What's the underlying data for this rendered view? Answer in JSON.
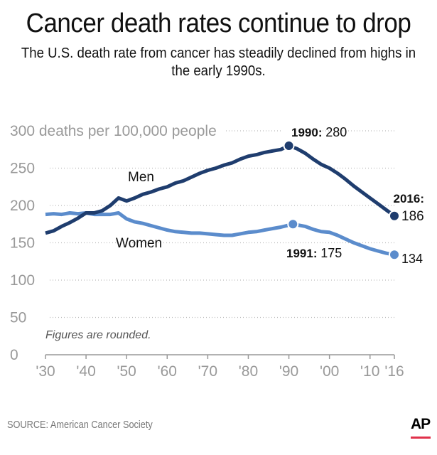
{
  "title": "Cancer death rates continue to drop",
  "subtitle_lines": [
    "The U.S. death rate from cancer has steadily declined from highs in",
    "the early 1990s."
  ],
  "source": "SOURCE: American Cancer Society",
  "logo": "AP",
  "colors": {
    "men": "#1f3d6e",
    "women": "#5b8ccc",
    "axis": "#999999",
    "ap_bar": "#e0314b"
  },
  "chart_data": {
    "type": "line",
    "ylabel": "deaths per 100,000 people",
    "ylim": [
      0,
      300
    ],
    "yticks": [
      0,
      50,
      100,
      150,
      200,
      250,
      300
    ],
    "ytick_labels": [
      "0",
      "50",
      "100",
      "150",
      "200",
      "250",
      "300"
    ],
    "xlim": [
      1930,
      2016
    ],
    "xticks": [
      1930,
      1940,
      1950,
      1960,
      1970,
      1980,
      1990,
      2000,
      2010,
      2016
    ],
    "xtick_labels": [
      "'30",
      "'40",
      "'50",
      "'60",
      "'70",
      "'80",
      "'90",
      "'00",
      "'10",
      "'16"
    ],
    "grid": true,
    "note": "Figures are rounded.",
    "series": [
      {
        "name": "Men",
        "x": [
          1930,
          1932,
          1934,
          1936,
          1938,
          1940,
          1942,
          1944,
          1946,
          1948,
          1950,
          1952,
          1954,
          1956,
          1958,
          1960,
          1962,
          1964,
          1966,
          1968,
          1970,
          1972,
          1974,
          1976,
          1978,
          1980,
          1982,
          1984,
          1986,
          1988,
          1990,
          1992,
          1994,
          1996,
          1998,
          2000,
          2002,
          2004,
          2006,
          2008,
          2010,
          2012,
          2014,
          2016
        ],
        "y": [
          163,
          166,
          172,
          177,
          183,
          190,
          190,
          193,
          200,
          210,
          206,
          210,
          215,
          218,
          222,
          225,
          230,
          233,
          238,
          243,
          247,
          250,
          254,
          257,
          262,
          266,
          268,
          271,
          273,
          275,
          280,
          276,
          270,
          262,
          255,
          250,
          243,
          235,
          226,
          218,
          210,
          202,
          194,
          186
        ]
      },
      {
        "name": "Women",
        "x": [
          1930,
          1932,
          1934,
          1936,
          1938,
          1940,
          1942,
          1944,
          1946,
          1948,
          1950,
          1952,
          1954,
          1956,
          1958,
          1960,
          1962,
          1964,
          1966,
          1968,
          1970,
          1972,
          1974,
          1976,
          1978,
          1980,
          1982,
          1984,
          1986,
          1988,
          1991,
          1992,
          1994,
          1996,
          1998,
          2000,
          2002,
          2004,
          2006,
          2008,
          2010,
          2012,
          2014,
          2016
        ],
        "y": [
          188,
          189,
          188,
          190,
          189,
          190,
          188,
          188,
          188,
          190,
          182,
          178,
          176,
          173,
          170,
          167,
          165,
          164,
          163,
          163,
          162,
          161,
          160,
          160,
          162,
          164,
          165,
          167,
          169,
          171,
          175,
          174,
          172,
          168,
          165,
          164,
          160,
          155,
          150,
          146,
          142,
          139,
          136,
          134
        ]
      }
    ],
    "annotations": [
      {
        "year_label": "1990:",
        "value_label": "280",
        "series": "Men",
        "x": 1990,
        "y": 280
      },
      {
        "year_label": "2016:",
        "value_label": "186",
        "series": "Men",
        "x": 2016,
        "y": 186
      },
      {
        "year_label": "1991:",
        "value_label": "175",
        "series": "Women",
        "x": 1991,
        "y": 175
      },
      {
        "year_label": "",
        "value_label": "134",
        "series": "Women",
        "x": 2016,
        "y": 134
      }
    ]
  }
}
